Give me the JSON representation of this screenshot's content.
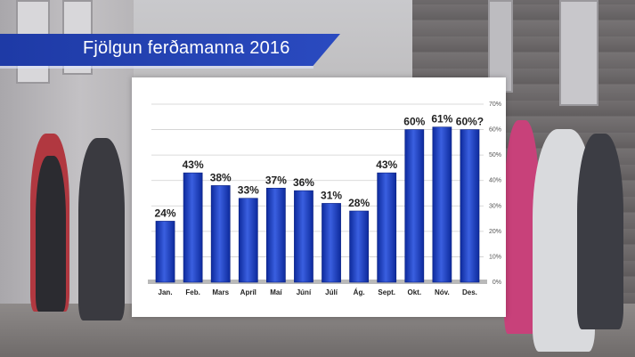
{
  "title": "Fjölgun ferðamanna 2016",
  "colors": {
    "banner": "#2442b4",
    "bar_top": "#3a5fe0",
    "bar_bottom": "#0d2a9c",
    "grid": "#cfcfcf"
  },
  "chart_data": {
    "type": "bar",
    "categories": [
      "Jan.",
      "Feb.",
      "Mars",
      "Apríl",
      "Maí",
      "Júní",
      "Júlí",
      "Ág.",
      "Sept.",
      "Okt.",
      "Nóv.",
      "Des."
    ],
    "values": [
      24,
      43,
      38,
      33,
      37,
      36,
      31,
      28,
      43,
      60,
      61,
      60
    ],
    "value_labels": [
      "24%",
      "43%",
      "38%",
      "33%",
      "37%",
      "36%",
      "31%",
      "28%",
      "43%",
      "60%",
      "61%",
      "60%?"
    ],
    "ylim": [
      0,
      70
    ],
    "yticks": [
      "0%",
      "10%",
      "20%",
      "30%",
      "40%",
      "50%",
      "60%",
      "70%"
    ],
    "title": "Fjölgun ferðamanna 2016",
    "xlabel": "",
    "ylabel": "",
    "grid": true
  }
}
